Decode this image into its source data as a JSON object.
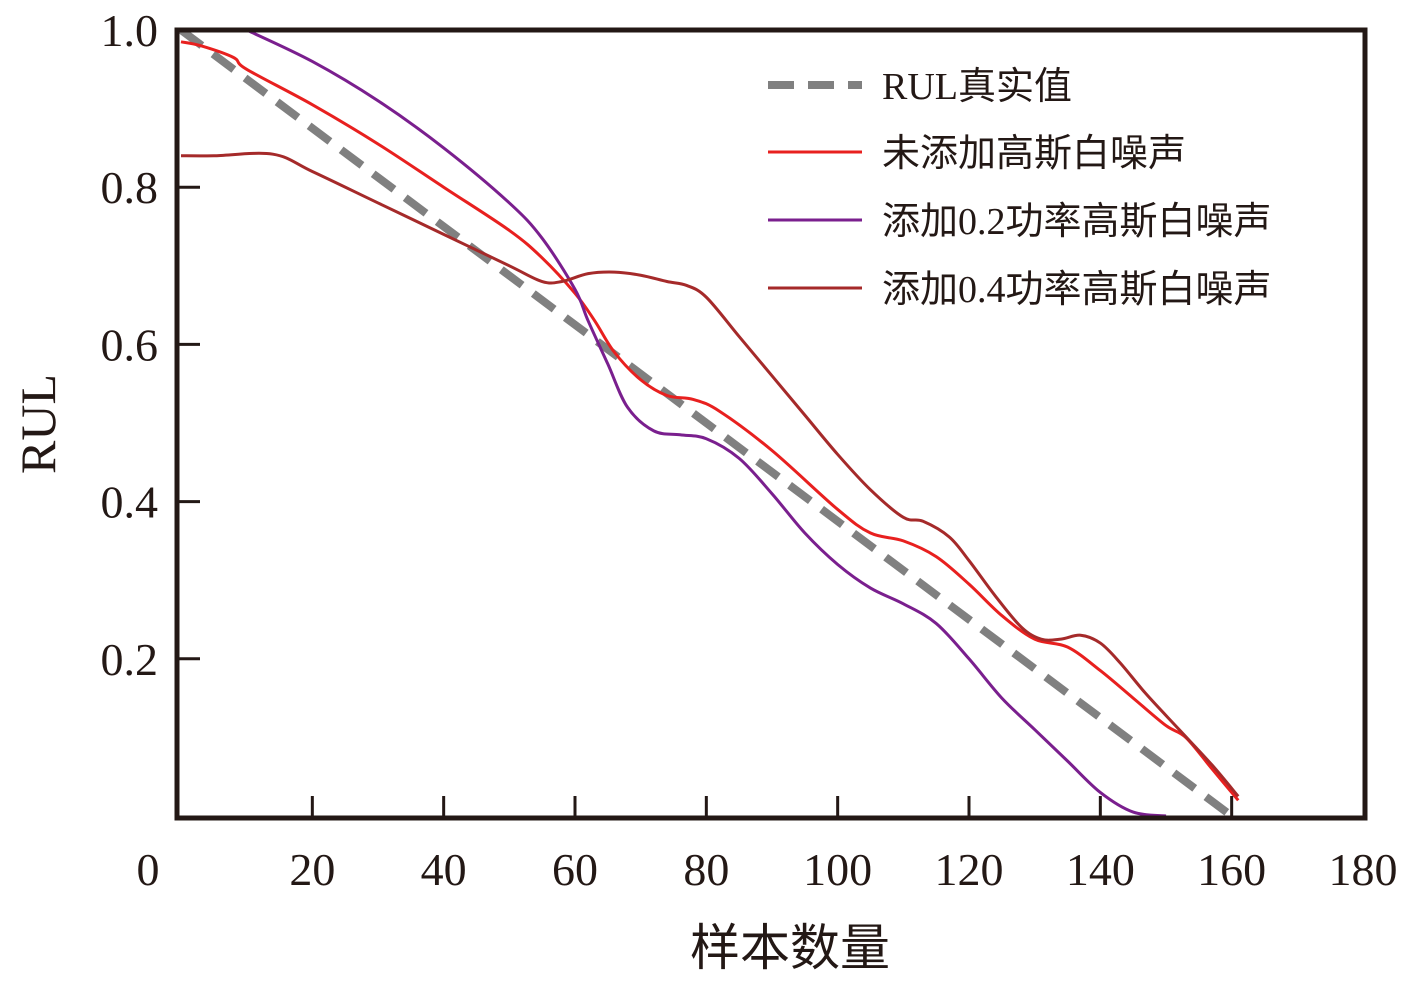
{
  "chart_data": {
    "type": "line",
    "title": "",
    "xlabel": "样本数量",
    "ylabel": "RUL",
    "xlim": [
      0,
      180
    ],
    "ylim": [
      0,
      1.0
    ],
    "xticks": [
      0,
      20,
      40,
      60,
      80,
      100,
      120,
      140,
      160,
      180
    ],
    "xtick_labels": [
      "0",
      "20",
      "40",
      "60",
      "80",
      "100",
      "120",
      "140",
      "160",
      "180"
    ],
    "yticks": [
      0.2,
      0.4,
      0.6,
      0.8,
      1.0
    ],
    "ytick_labels": [
      "0.2",
      "0.4",
      "0.6",
      "0.8",
      "1.0"
    ],
    "grid": false,
    "legend_position": "top-right",
    "series": [
      {
        "name": "RUL真实值",
        "color": "#808080",
        "style": "dashed",
        "x": [
          0,
          160
        ],
        "y": [
          1.0,
          0.0
        ]
      },
      {
        "name": "未添加高斯白噪声",
        "color": "#e8201f",
        "style": "solid",
        "x": [
          0,
          3,
          8,
          10,
          20,
          30,
          40,
          50,
          55,
          60,
          63,
          66,
          70,
          74,
          78,
          82,
          90,
          100,
          105,
          110,
          115,
          120,
          125,
          130,
          135,
          140,
          145,
          150,
          153,
          157,
          161
        ],
        "y": [
          0.985,
          0.98,
          0.965,
          0.95,
          0.905,
          0.855,
          0.8,
          0.745,
          0.71,
          0.665,
          0.63,
          0.59,
          0.555,
          0.535,
          0.53,
          0.515,
          0.465,
          0.39,
          0.36,
          0.35,
          0.33,
          0.295,
          0.255,
          0.225,
          0.215,
          0.185,
          0.15,
          0.115,
          0.1,
          0.06,
          0.02
        ]
      },
      {
        "name": "添加0.2功率高斯白噪声",
        "color": "#7a1f8e",
        "style": "solid",
        "x": [
          10,
          20,
          30,
          40,
          50,
          55,
          60,
          62,
          65,
          68,
          72,
          76,
          80,
          85,
          90,
          95,
          100,
          105,
          110,
          115,
          120,
          125,
          130,
          135,
          140,
          145,
          150
        ],
        "y": [
          1.0,
          0.96,
          0.91,
          0.85,
          0.78,
          0.735,
          0.67,
          0.63,
          0.575,
          0.52,
          0.49,
          0.485,
          0.48,
          0.455,
          0.41,
          0.36,
          0.32,
          0.29,
          0.27,
          0.245,
          0.2,
          0.15,
          0.11,
          0.07,
          0.03,
          0.005,
          0.0
        ]
      },
      {
        "name": "添加0.4功率高斯白噪声",
        "color": "#a52a2a",
        "style": "solid",
        "x": [
          0,
          5,
          14,
          20,
          30,
          40,
          50,
          55,
          58,
          62,
          66,
          70,
          74,
          77,
          80,
          85,
          90,
          95,
          100,
          105,
          110,
          113,
          117,
          120,
          124,
          128,
          131,
          134,
          137,
          140,
          143,
          147,
          152,
          157,
          161
        ],
        "y": [
          0.84,
          0.84,
          0.842,
          0.82,
          0.78,
          0.74,
          0.7,
          0.68,
          0.68,
          0.69,
          0.692,
          0.688,
          0.68,
          0.675,
          0.66,
          0.61,
          0.56,
          0.51,
          0.46,
          0.415,
          0.38,
          0.375,
          0.355,
          0.325,
          0.28,
          0.24,
          0.225,
          0.225,
          0.23,
          0.22,
          0.195,
          0.155,
          0.11,
          0.065,
          0.025
        ]
      }
    ]
  }
}
